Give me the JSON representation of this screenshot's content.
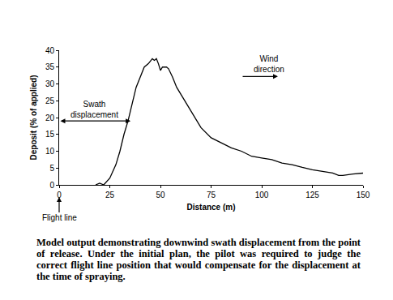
{
  "chart_data": {
    "type": "line",
    "x_label": "Distance (m)",
    "y_label": "Deposit (% of applied)",
    "x": [
      18,
      20,
      22,
      25,
      28,
      30,
      32,
      34,
      36,
      38,
      40,
      42,
      44,
      46,
      47,
      48,
      49,
      50,
      51,
      52,
      53,
      54,
      56,
      58,
      60,
      63,
      66,
      70,
      75,
      80,
      85,
      90,
      95,
      100,
      105,
      110,
      115,
      120,
      125,
      130,
      135,
      138,
      140,
      145,
      150
    ],
    "values": [
      0,
      0.5,
      0,
      2,
      6,
      10,
      15,
      19,
      24,
      29,
      32,
      35,
      36,
      37.5,
      37,
      37.5,
      36,
      34,
      35,
      35,
      35,
      34.5,
      32,
      29,
      27,
      24,
      21,
      17,
      14,
      12.5,
      11,
      10,
      8.5,
      8,
      7.5,
      6.5,
      6,
      5.2,
      4.5,
      4,
      3.5,
      2.8,
      2.8,
      3.2,
      3.5
    ],
    "color": "#000000",
    "xlim": [
      0,
      150
    ],
    "xticks": [
      0,
      25,
      50,
      75,
      100,
      125,
      150
    ],
    "ylim": [
      0,
      40
    ],
    "yticks": [
      0,
      5,
      10,
      15,
      20,
      25,
      30,
      35,
      40
    ],
    "grid": false,
    "annotations": [
      "Swath displacement",
      "Wind direction",
      "Flight line"
    ],
    "caption": "Model output demonstrating downwind swath displacement from the point of release. Under the initial plan, the pilot was required to judge the correct flight line position that would compensate for the displacement at the time of spraying."
  }
}
